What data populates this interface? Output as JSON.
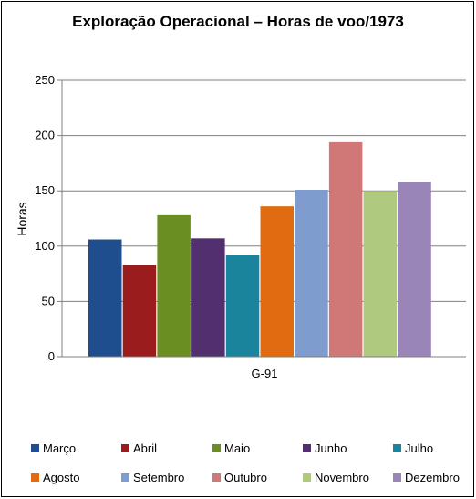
{
  "chart_data": {
    "type": "bar",
    "title": "Exploração  Operacional – Horas de voo/1973",
    "xlabel": "",
    "ylabel": "Horas",
    "categories": [
      "G-91"
    ],
    "ylim": [
      0,
      250
    ],
    "yticks": [
      0,
      50,
      100,
      150,
      200,
      250
    ],
    "grid": true,
    "legend_position": "bottom",
    "series": [
      {
        "name": "Março",
        "values": [
          106
        ],
        "color": "#1F4E8F"
      },
      {
        "name": "Abril",
        "values": [
          83
        ],
        "color": "#9B1C1C"
      },
      {
        "name": "Maio",
        "values": [
          128
        ],
        "color": "#6B8E23"
      },
      {
        "name": "Junho",
        "values": [
          107
        ],
        "color": "#523070"
      },
      {
        "name": "Julho",
        "values": [
          92
        ],
        "color": "#1A849C"
      },
      {
        "name": "Agosto",
        "values": [
          136
        ],
        "color": "#E06B10"
      },
      {
        "name": "Setembro",
        "values": [
          151
        ],
        "color": "#7E9CCD"
      },
      {
        "name": "Outubro",
        "values": [
          194
        ],
        "color": "#D07878"
      },
      {
        "name": "Novembro",
        "values": [
          150
        ],
        "color": "#AFC97F"
      },
      {
        "name": "Dezembro",
        "values": [
          158
        ],
        "color": "#9A85B8"
      }
    ]
  }
}
